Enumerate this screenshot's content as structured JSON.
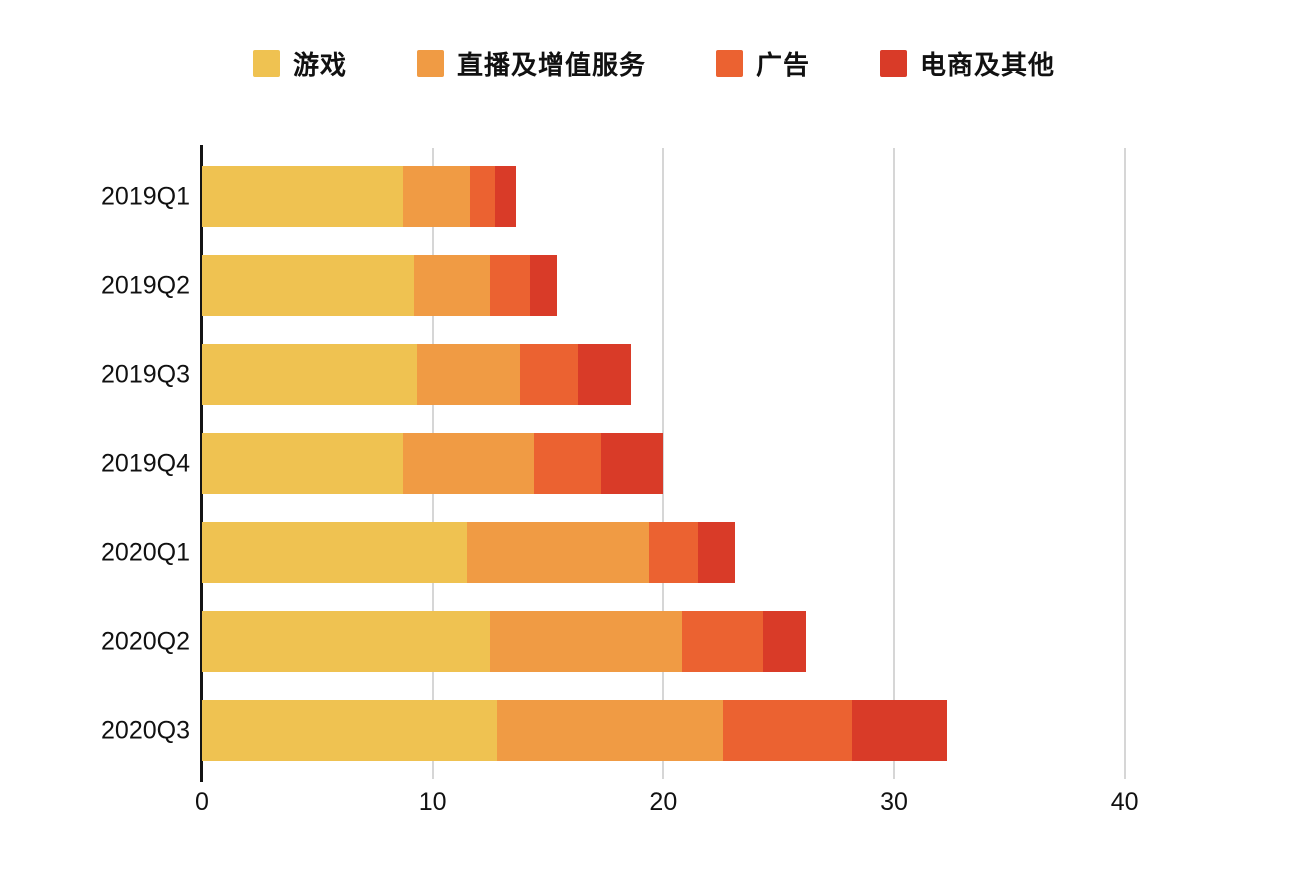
{
  "chart_data": {
    "type": "bar",
    "orientation": "horizontal",
    "stacked": true,
    "title": "",
    "xlabel": "",
    "ylabel": "",
    "categories": [
      "2019Q1",
      "2019Q2",
      "2019Q3",
      "2019Q4",
      "2020Q1",
      "2020Q2",
      "2020Q3"
    ],
    "series": [
      {
        "name": "游戏",
        "color": "#efc251",
        "values": [
          8.7,
          9.2,
          9.3,
          8.7,
          11.5,
          12.5,
          12.8
        ]
      },
      {
        "name": "直播及增值服务",
        "color": "#f09b44",
        "values": [
          2.9,
          3.3,
          4.5,
          5.7,
          7.9,
          8.3,
          9.8
        ]
      },
      {
        "name": "广告",
        "color": "#eb6231",
        "values": [
          1.1,
          1.7,
          2.5,
          2.9,
          2.1,
          3.5,
          5.6
        ]
      },
      {
        "name": "电商及其他",
        "color": "#d93b28",
        "values": [
          0.9,
          1.2,
          2.3,
          2.7,
          1.6,
          1.9,
          4.1
        ]
      }
    ],
    "totals": [
      13.6,
      15.4,
      18.6,
      20.0,
      23.1,
      26.2,
      32.3
    ],
    "x_ticks": [
      0,
      10,
      20,
      30,
      40
    ],
    "xlim": [
      0,
      45
    ],
    "grid": true,
    "legend_position": "top",
    "colors": {
      "background": "#ffffff",
      "axis_line": "#141414",
      "gridline": "#d6d6d6",
      "text": "#111111"
    }
  }
}
